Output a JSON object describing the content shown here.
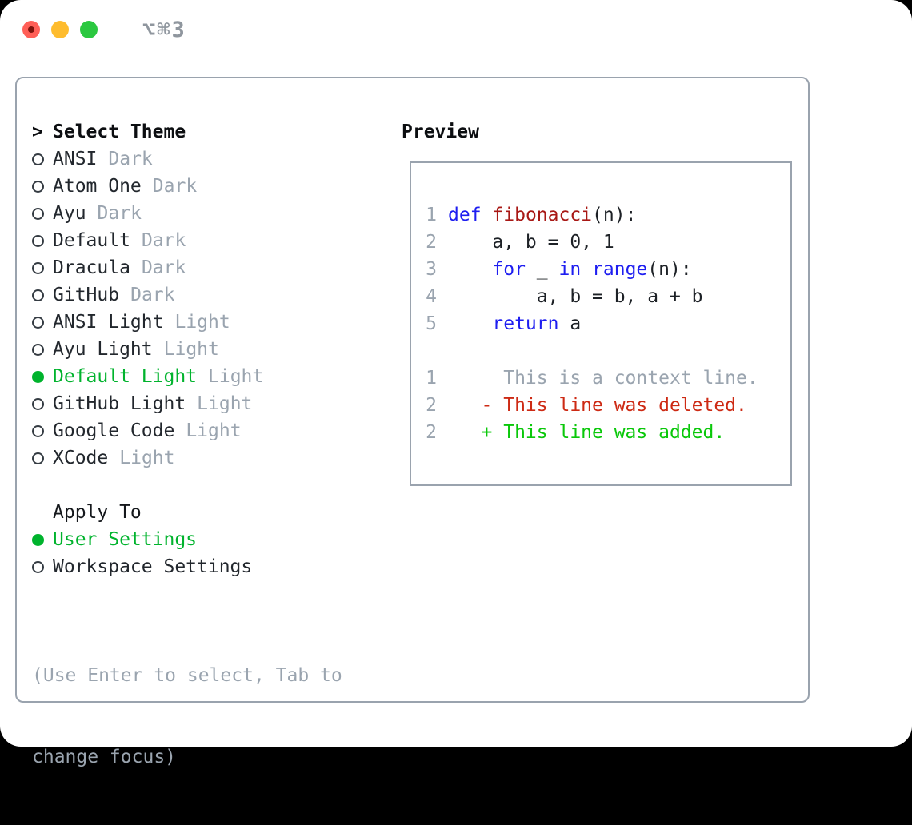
{
  "window": {
    "title": "⌥⌘3",
    "traffic_lights": {
      "close_color": "#ff5f57",
      "minimize_color": "#febc2e",
      "zoom_color": "#2bc840"
    }
  },
  "theme_picker": {
    "cursor": ">",
    "title": "Select Theme",
    "themes": [
      {
        "name": "ANSI",
        "variant": "Dark",
        "selected": false
      },
      {
        "name": "Atom One",
        "variant": "Dark",
        "selected": false
      },
      {
        "name": "Ayu",
        "variant": "Dark",
        "selected": false
      },
      {
        "name": "Default",
        "variant": "Dark",
        "selected": false
      },
      {
        "name": "Dracula",
        "variant": "Dark",
        "selected": false
      },
      {
        "name": "GitHub",
        "variant": "Dark",
        "selected": false
      },
      {
        "name": "ANSI Light",
        "variant": "Light",
        "selected": false
      },
      {
        "name": "Ayu Light",
        "variant": "Light",
        "selected": false
      },
      {
        "name": "Default Light",
        "variant": "Light",
        "selected": true
      },
      {
        "name": "GitHub Light",
        "variant": "Light",
        "selected": false
      },
      {
        "name": "Google Code",
        "variant": "Light",
        "selected": false
      },
      {
        "name": "XCode",
        "variant": "Light",
        "selected": false
      }
    ],
    "apply_to": {
      "label": "Apply To",
      "options": [
        {
          "name": "User Settings",
          "selected": true
        },
        {
          "name": "Workspace Settings",
          "selected": false
        }
      ]
    },
    "hint_lines": [
      "(Use Enter to select, Tab to",
      "change focus)"
    ]
  },
  "preview": {
    "title": "Preview",
    "lines": [
      {
        "num": "1",
        "segments": [
          {
            "text": "def",
            "style": "keyword"
          },
          {
            "text": " ",
            "style": "plain"
          },
          {
            "text": "fibonacci",
            "style": "function"
          },
          {
            "text": "(n):",
            "style": "plain"
          }
        ]
      },
      {
        "num": "2",
        "segments": [
          {
            "text": "    a, b = 0, 1",
            "style": "plain"
          }
        ]
      },
      {
        "num": "3",
        "segments": [
          {
            "text": "    ",
            "style": "plain"
          },
          {
            "text": "for",
            "style": "keyword"
          },
          {
            "text": " _ ",
            "style": "plain"
          },
          {
            "text": "in",
            "style": "keyword"
          },
          {
            "text": " ",
            "style": "plain"
          },
          {
            "text": "range",
            "style": "keyword"
          },
          {
            "text": "(n):",
            "style": "plain"
          }
        ]
      },
      {
        "num": "4",
        "segments": [
          {
            "text": "        a, b = b, a + b",
            "style": "plain"
          }
        ]
      },
      {
        "num": "5",
        "segments": [
          {
            "text": "    ",
            "style": "plain"
          },
          {
            "text": "return",
            "style": "keyword"
          },
          {
            "text": " a",
            "style": "plain"
          }
        ]
      },
      {
        "num": "",
        "segments": []
      },
      {
        "num": "1",
        "segments": [
          {
            "text": "     This is a context line.",
            "style": "context"
          }
        ]
      },
      {
        "num": "2",
        "segments": [
          {
            "text": "   - This line was deleted.",
            "style": "deleted"
          }
        ]
      },
      {
        "num": "2",
        "segments": [
          {
            "text": "   + This line was added.",
            "style": "added"
          }
        ]
      }
    ]
  },
  "colors": {
    "selected_green": "#00b32d",
    "keyword_blue": "#1e1ef0",
    "function_red": "#a81815",
    "deleted_red": "#cd2a14",
    "added_green": "#0ac80a",
    "muted_gray": "#9aa4af",
    "border_gray": "#9aa3ae",
    "text_black": "#1d2126"
  }
}
